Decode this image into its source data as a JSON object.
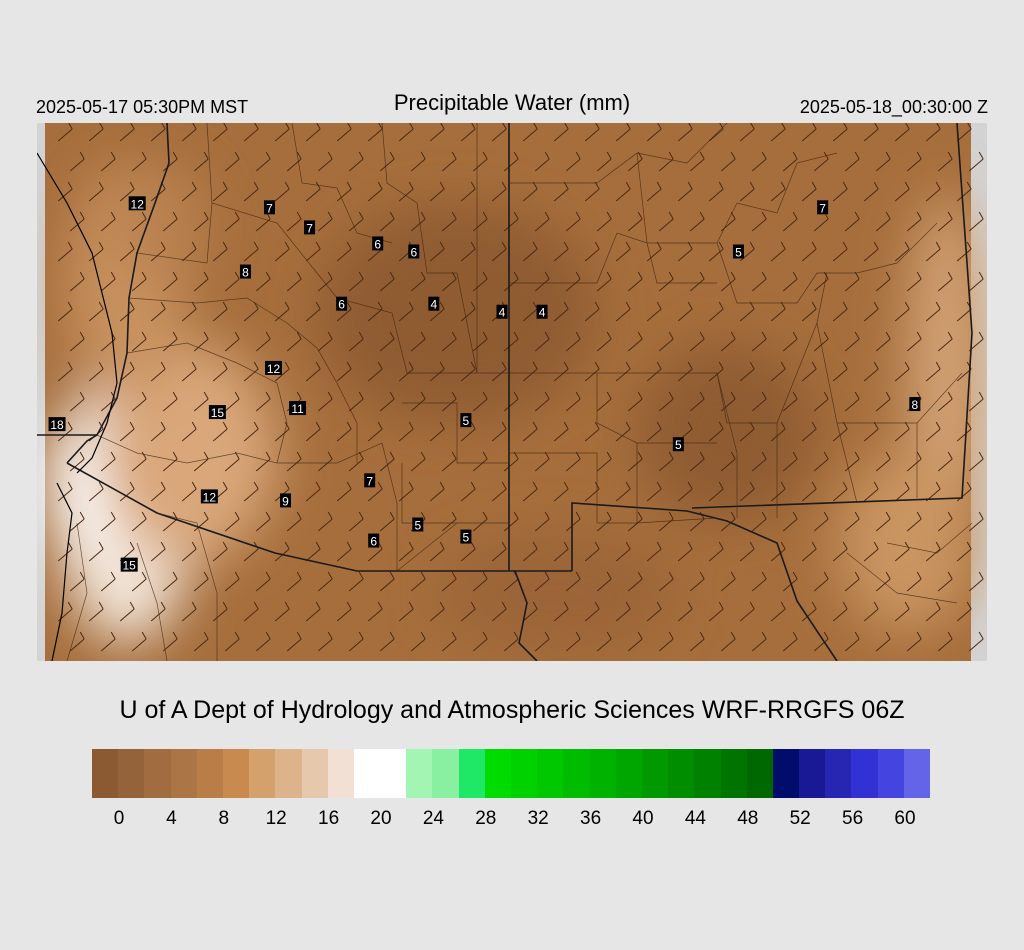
{
  "header": {
    "local_time": "2025-05-17 05:30PM MST",
    "title": "Precipitable Water (mm)",
    "valid_time": "2025-05-18_00:30:00 Z"
  },
  "credit": "U of A Dept of Hydrology and Atmospheric Sciences WRF-RRGFS 06Z",
  "map": {
    "base_color": "#a66e3c",
    "outside_color": "#d3d3d3",
    "station_values": [
      {
        "label": "12",
        "lon": -122.0,
        "lat": 41.0
      },
      {
        "label": "7",
        "lon": -118.7,
        "lat": 40.9
      },
      {
        "label": "7",
        "lon": -117.7,
        "lat": 40.4
      },
      {
        "label": "6",
        "lon": -116.0,
        "lat": 40.0
      },
      {
        "label": "6",
        "lon": -115.1,
        "lat": 39.8
      },
      {
        "label": "8",
        "lon": -119.3,
        "lat": 39.3
      },
      {
        "label": "6",
        "lon": -116.9,
        "lat": 38.5
      },
      {
        "label": "4",
        "lon": -114.6,
        "lat": 38.5
      },
      {
        "label": "4",
        "lon": -112.9,
        "lat": 38.3
      },
      {
        "label": "4",
        "lon": -111.9,
        "lat": 38.3
      },
      {
        "label": "12",
        "lon": -118.6,
        "lat": 36.9
      },
      {
        "label": "15",
        "lon": -120.0,
        "lat": 35.8
      },
      {
        "label": "11",
        "lon": -118.0,
        "lat": 35.9
      },
      {
        "label": "18",
        "lon": -124.0,
        "lat": 35.5
      },
      {
        "label": "5",
        "lon": -113.8,
        "lat": 35.6
      },
      {
        "label": "7",
        "lon": -116.2,
        "lat": 34.1
      },
      {
        "label": "12",
        "lon": -120.2,
        "lat": 33.7
      },
      {
        "label": "9",
        "lon": -118.3,
        "lat": 33.6
      },
      {
        "label": "5",
        "lon": -115.0,
        "lat": 33.0
      },
      {
        "label": "5",
        "lon": -113.8,
        "lat": 32.7
      },
      {
        "label": "6",
        "lon": -116.1,
        "lat": 32.6
      },
      {
        "label": "15",
        "lon": -122.2,
        "lat": 32.0
      },
      {
        "label": "5",
        "lon": -107.0,
        "lat": 39.8
      },
      {
        "label": "7",
        "lon": -104.9,
        "lat": 40.9
      },
      {
        "label": "5",
        "lon": -108.5,
        "lat": 35.0
      },
      {
        "label": "8",
        "lon": -102.6,
        "lat": 36.0
      }
    ]
  },
  "colorbar": {
    "colors": [
      "#8b5a32",
      "#95633a",
      "#a06c40",
      "#ab7545",
      "#b97d48",
      "#c88a4f",
      "#d4a06b",
      "#dcb38b",
      "#e6c9ad",
      "#f1e0d3",
      "#ffffff",
      "#ffffff",
      "#a3f5b4",
      "#88f0a0",
      "#1fe866",
      "#00dc00",
      "#00d200",
      "#00c800",
      "#00bc00",
      "#00b200",
      "#00a600",
      "#009a00",
      "#008e00",
      "#008200",
      "#007400",
      "#006800",
      "#000d6b",
      "#191996",
      "#2626b3",
      "#3232d4",
      "#4444e0",
      "#6464e8"
    ],
    "ticks": [
      "0",
      "4",
      "8",
      "12",
      "16",
      "20",
      "24",
      "28",
      "32",
      "36",
      "40",
      "44",
      "48",
      "52",
      "56",
      "60"
    ]
  }
}
